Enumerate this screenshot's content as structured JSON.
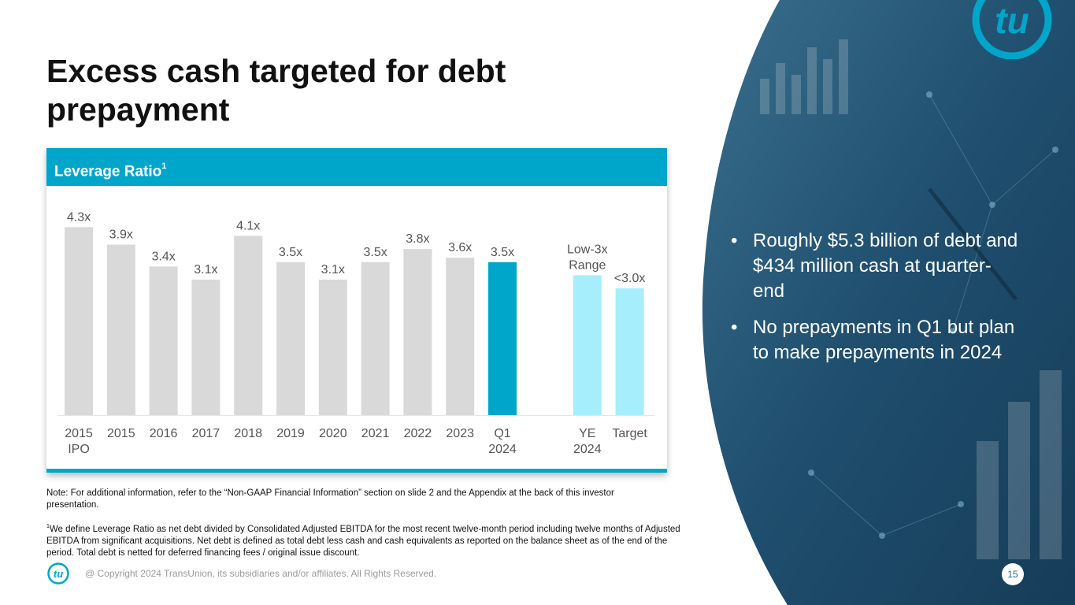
{
  "slide": {
    "title": "Excess cash targeted for debt prepayment",
    "page_number": "15",
    "copyright": "@ Copyright 2024 TransUnion, its subsidiaries and/or affiliates.  All Rights Reserved.",
    "logo_text": "tu"
  },
  "chart_card": {
    "header": "Leverage Ratio",
    "header_sup": "1"
  },
  "bullets": [
    "Roughly $5.3 billion of debt and $434 million cash at quarter-end",
    "No prepayments in Q1 but plan to make prepayments in 2024"
  ],
  "notes": {
    "note": "Note: For additional information, refer to the “Non-GAAP Financial Information” section on slide 2 and the Appendix at the back of this investor presentation.",
    "footnote_sup": "1",
    "footnote": "We define Leverage Ratio as net debt divided by Consolidated Adjusted EBITDA for the most recent twelve-month period including twelve months of Adjusted EBITDA from significant acquisitions. Net debt is defined as total debt less cash and cash equivalents as reported on the balance sheet as of the end of the period. Total debt is netted for deferred financing fees / original issue discount."
  },
  "colors": {
    "historical": "#d9d9d9",
    "current": "#00a6ca",
    "target": "#a6eefc",
    "accent": "#00a6ca",
    "navy": "#1f4e6e"
  },
  "chart_data": {
    "type": "bar",
    "title": "Leverage Ratio",
    "unit": "x",
    "ylim": [
      0,
      4.5
    ],
    "categories": [
      "2015 IPO",
      "2015",
      "2016",
      "2017",
      "2018",
      "2019",
      "2020",
      "2021",
      "2022",
      "2023",
      "Q1 2024",
      "YE 2024",
      "Target"
    ],
    "category_lines": [
      [
        "2015",
        "IPO"
      ],
      [
        "2015"
      ],
      [
        "2016"
      ],
      [
        "2017"
      ],
      [
        "2018"
      ],
      [
        "2019"
      ],
      [
        "2020"
      ],
      [
        "2021"
      ],
      [
        "2022"
      ],
      [
        "2023"
      ],
      [
        "Q1",
        "2024"
      ],
      [
        "YE",
        "2024"
      ],
      [
        "Target"
      ]
    ],
    "values": [
      4.3,
      3.9,
      3.4,
      3.1,
      4.1,
      3.5,
      3.1,
      3.5,
      3.8,
      3.6,
      3.5,
      3.2,
      2.9
    ],
    "data_labels": [
      [
        "4.3x"
      ],
      [
        "3.9x"
      ],
      [
        "3.4x"
      ],
      [
        "3.1x"
      ],
      [
        "4.1x"
      ],
      [
        "3.5x"
      ],
      [
        "3.1x"
      ],
      [
        "3.5x"
      ],
      [
        "3.8x"
      ],
      [
        "3.6x"
      ],
      [
        "3.5x"
      ],
      [
        "Low-3x",
        "Range"
      ],
      [
        "<3.0x"
      ]
    ],
    "bar_kind": [
      "historical",
      "historical",
      "historical",
      "historical",
      "historical",
      "historical",
      "historical",
      "historical",
      "historical",
      "historical",
      "current",
      "target",
      "target"
    ]
  }
}
